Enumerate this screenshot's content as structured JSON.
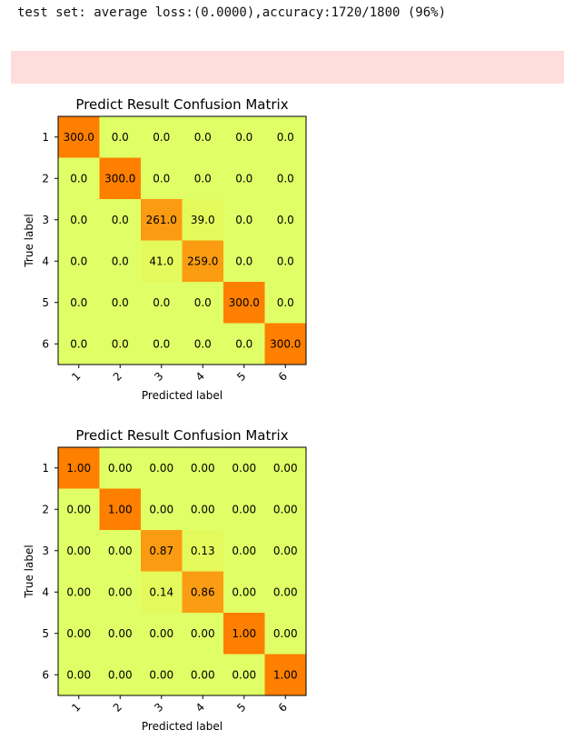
{
  "output": {
    "stdout_line": "test set: average loss:(0.0000),accuracy:1720/1800 (96%)"
  },
  "colors": {
    "high": "#ff7f00",
    "mid": "#f0ea40",
    "low": "#e0ff66",
    "stderr_bg": "#ffdddd"
  },
  "chart_data": [
    {
      "type": "heatmap",
      "title": "Predict Result Confusion Matrix",
      "xlabel": "Predicted label",
      "ylabel": "True label",
      "x_ticks": [
        "1",
        "2",
        "3",
        "4",
        "5",
        "6"
      ],
      "y_ticks": [
        "1",
        "2",
        "3",
        "4",
        "5",
        "6"
      ],
      "cell_labels": [
        [
          "300.0",
          "0.0",
          "0.0",
          "0.0",
          "0.0",
          "0.0"
        ],
        [
          "0.0",
          "300.0",
          "0.0",
          "0.0",
          "0.0",
          "0.0"
        ],
        [
          "0.0",
          "0.0",
          "261.0",
          "39.0",
          "0.0",
          "0.0"
        ],
        [
          "0.0",
          "0.0",
          "41.0",
          "259.0",
          "0.0",
          "0.0"
        ],
        [
          "0.0",
          "0.0",
          "0.0",
          "0.0",
          "300.0",
          "0.0"
        ],
        [
          "0.0",
          "0.0",
          "0.0",
          "0.0",
          "0.0",
          "300.0"
        ]
      ],
      "values": [
        [
          300,
          0,
          0,
          0,
          0,
          0
        ],
        [
          0,
          300,
          0,
          0,
          0,
          0
        ],
        [
          0,
          0,
          261,
          39,
          0,
          0
        ],
        [
          0,
          0,
          41,
          259,
          0,
          0
        ],
        [
          0,
          0,
          0,
          0,
          300,
          0
        ],
        [
          0,
          0,
          0,
          0,
          0,
          300
        ]
      ],
      "colormap": "Wistia",
      "grid": false
    },
    {
      "type": "heatmap",
      "title": "Predict Result Confusion Matrix",
      "xlabel": "Predicted label",
      "ylabel": "True label",
      "x_ticks": [
        "1",
        "2",
        "3",
        "4",
        "5",
        "6"
      ],
      "y_ticks": [
        "1",
        "2",
        "3",
        "4",
        "5",
        "6"
      ],
      "cell_labels": [
        [
          "1.00",
          "0.00",
          "0.00",
          "0.00",
          "0.00",
          "0.00"
        ],
        [
          "0.00",
          "1.00",
          "0.00",
          "0.00",
          "0.00",
          "0.00"
        ],
        [
          "0.00",
          "0.00",
          "0.87",
          "0.13",
          "0.00",
          "0.00"
        ],
        [
          "0.00",
          "0.00",
          "0.14",
          "0.86",
          "0.00",
          "0.00"
        ],
        [
          "0.00",
          "0.00",
          "0.00",
          "0.00",
          "1.00",
          "0.00"
        ],
        [
          "0.00",
          "0.00",
          "0.00",
          "0.00",
          "0.00",
          "1.00"
        ]
      ],
      "values": [
        [
          1.0,
          0.0,
          0.0,
          0.0,
          0.0,
          0.0
        ],
        [
          0.0,
          1.0,
          0.0,
          0.0,
          0.0,
          0.0
        ],
        [
          0.0,
          0.0,
          0.87,
          0.13,
          0.0,
          0.0
        ],
        [
          0.0,
          0.0,
          0.14,
          0.86,
          0.0,
          0.0
        ],
        [
          0.0,
          0.0,
          0.0,
          0.0,
          1.0,
          0.0
        ],
        [
          0.0,
          0.0,
          0.0,
          0.0,
          0.0,
          1.0
        ]
      ],
      "colormap": "Wistia",
      "grid": false
    }
  ]
}
